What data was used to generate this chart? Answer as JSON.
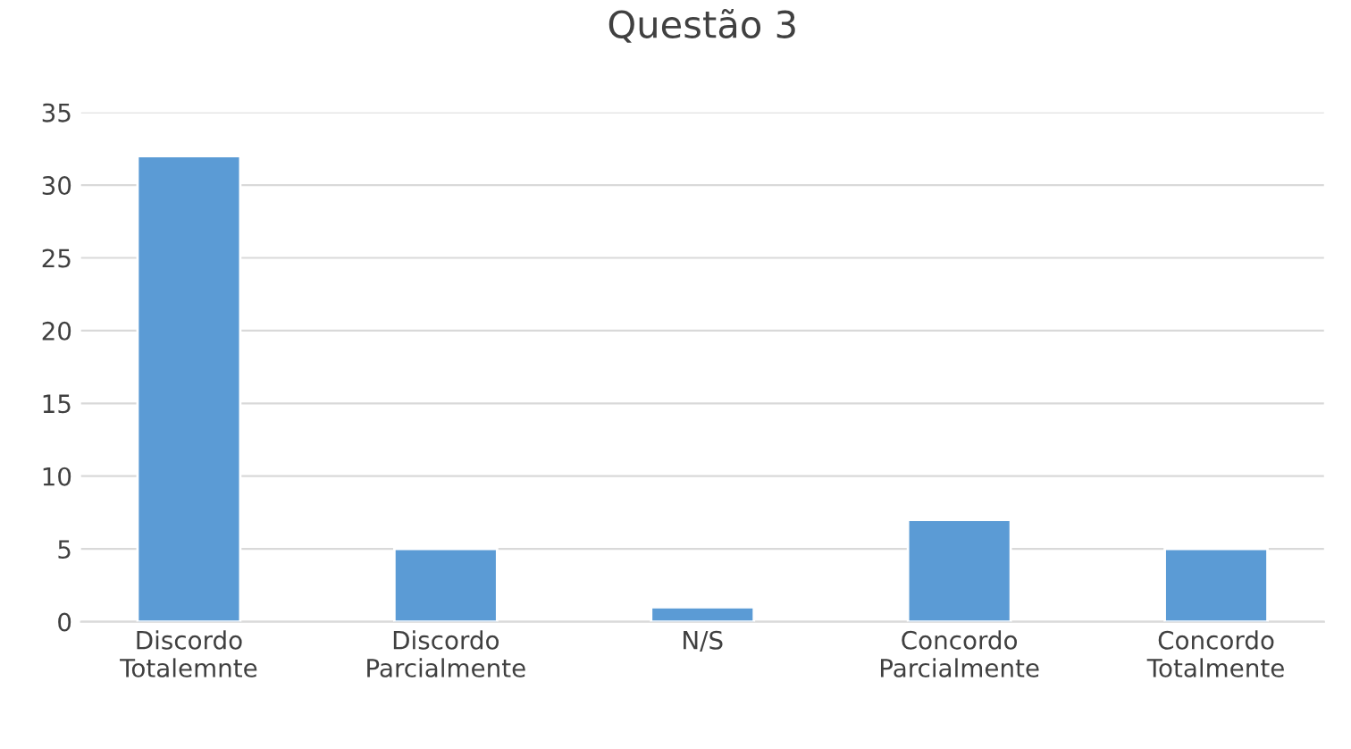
{
  "chart_data": {
    "type": "bar",
    "title": "Questão 3",
    "categories": [
      "Discordo\nTotalemnte",
      "Discordo\nParcialmente",
      "N/S",
      "Concordo\nParcialmente",
      "Concordo\nTotalmente"
    ],
    "values": [
      32,
      5,
      1,
      7,
      5
    ],
    "color": "#5b9bd5",
    "ylim": [
      0,
      35
    ],
    "yticks": [
      0,
      5,
      10,
      15,
      20,
      25,
      30,
      35
    ],
    "grid": "y"
  }
}
